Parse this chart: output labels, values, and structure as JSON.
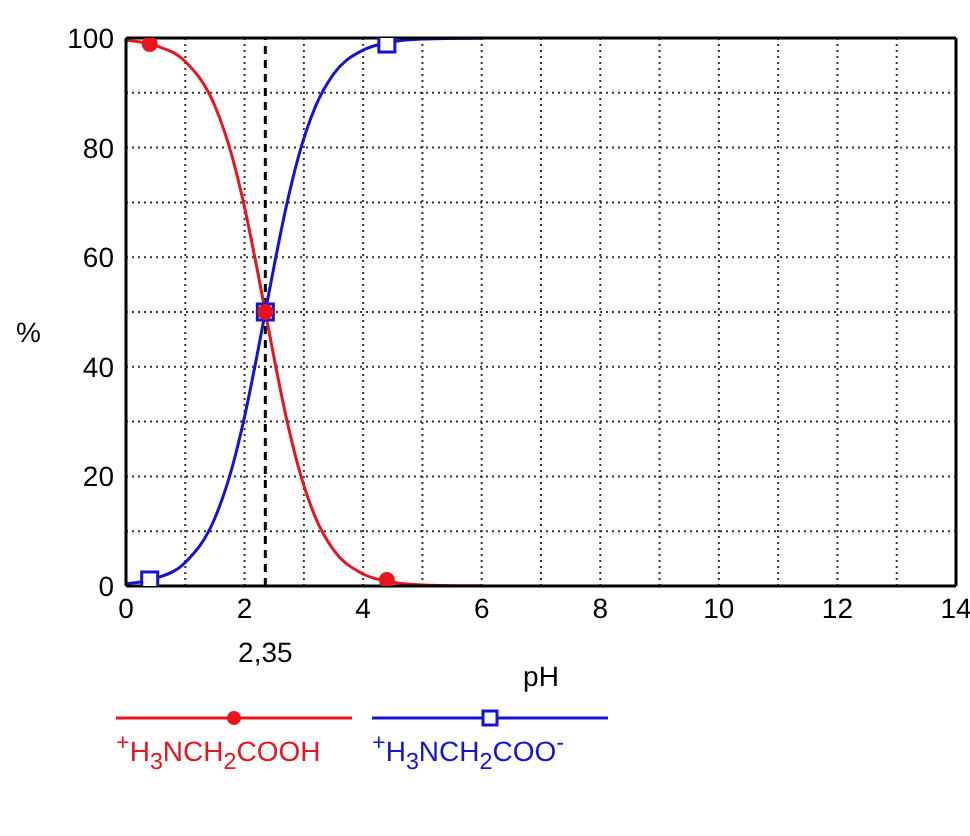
{
  "chart_data": {
    "type": "line",
    "xlabel": "pH",
    "ylabel": "%",
    "series": [
      {
        "name": "$^{+}$H$_{3}$NCH$_{2}$COOH",
        "color": "#e8141e",
        "x": [
          0,
          0.5,
          1,
          1.5,
          1.8,
          2,
          2.2,
          2.35,
          2.5,
          2.7,
          2.9,
          3.2,
          3.5,
          4,
          4.5,
          5,
          6
        ],
        "values": [
          99.6,
          98.6,
          95.7,
          87.6,
          78,
          69.1,
          58.5,
          50,
          41.5,
          30.9,
          22,
          12.4,
          6.6,
          2.2,
          0.7,
          0.2,
          0
        ]
      },
      {
        "name": "$^{+}$H$_{3}$NCH$_{2}$COO$^{-}$",
        "color": "#1414d2",
        "x": [
          0,
          0.5,
          1,
          1.5,
          1.8,
          2,
          2.2,
          2.35,
          2.5,
          2.7,
          2.9,
          3.2,
          3.5,
          4,
          4.5,
          5,
          6
        ],
        "values": [
          0.4,
          1.4,
          4.3,
          12.4,
          22,
          30.9,
          41.5,
          50,
          58.5,
          69.1,
          78,
          87.6,
          93.4,
          97.8,
          99.3,
          99.8,
          100
        ]
      },
      {
        "type": "scatter",
        "color": "#1414d2",
        "marker": "square",
        "x": [
          0.4,
          2.35,
          4.4
        ],
        "values": [
          1.1,
          50,
          98.9
        ]
      },
      {
        "type": "scatter",
        "color": "#e8141e",
        "marker": "circle",
        "x": [
          0.4,
          2.35,
          4.4
        ],
        "values": [
          98.9,
          50,
          1.1
        ]
      }
    ],
    "xlim": [
      0,
      14
    ],
    "xticks": [
      0,
      {
        "value": 1,
        "label": null
      },
      2,
      {
        "value": 3,
        "label": null
      },
      4,
      {
        "value": 5,
        "label": null
      },
      6,
      {
        "value": 7,
        "label": null
      },
      8,
      {
        "value": 9,
        "label": null
      },
      10,
      {
        "value": 11,
        "label": null
      },
      12,
      {
        "value": 13,
        "label": null
      },
      14
    ],
    "ylim": [
      0,
      100
    ],
    "yticks": [
      0,
      {
        "value": 10,
        "label": null
      },
      20,
      {
        "value": 30,
        "label": null
      },
      40,
      {
        "value": 50,
        "label": null
      },
      60,
      {
        "value": 70,
        "label": null
      },
      80,
      {
        "value": 90,
        "label": null
      },
      100
    ],
    "ref_lines": [
      {
        "axis": "x",
        "value": 2.35,
        "label": "2,35",
        "color": "#000000",
        "line_style": "dashed"
      }
    ],
    "grid": true,
    "legend": "bottom left"
  }
}
